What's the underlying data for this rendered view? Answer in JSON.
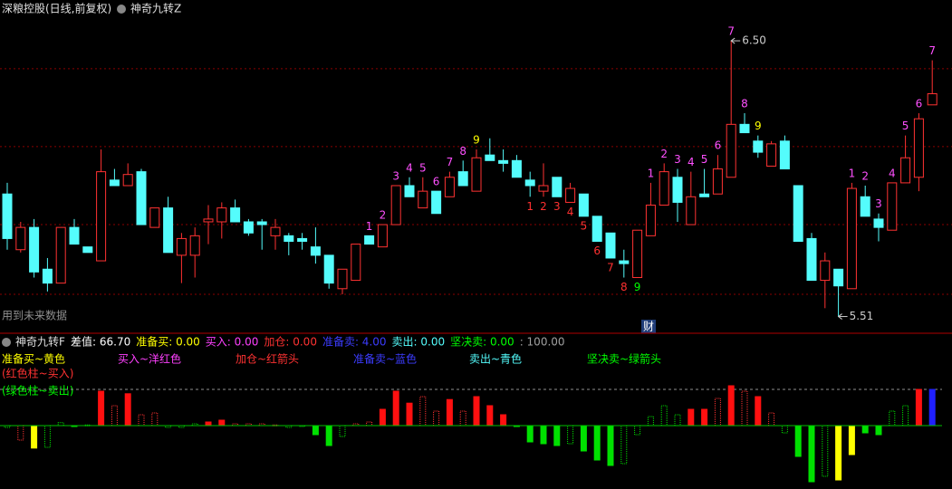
{
  "header": {
    "title": "深粮控股(日线,前复权)",
    "indicator": "神奇九转Z"
  },
  "chart_data": [
    {
      "type": "candlestick",
      "note_text": "用到未来数据",
      "tag": "财",
      "ylim": [
        5.45,
        6.64
      ],
      "gridlines": [
        6.4,
        6.12,
        5.84,
        5.59
      ],
      "up_color": "#ff3232",
      "down_color": "#54fcfc",
      "candles": [
        [
          5.95,
          5.79,
          5.99,
          5.75
        ],
        [
          5.75,
          5.83,
          5.85,
          5.74
        ],
        [
          5.83,
          5.67,
          5.86,
          5.65
        ],
        [
          5.68,
          5.63,
          5.72,
          5.6
        ],
        [
          5.63,
          5.83,
          5.83,
          5.63
        ],
        [
          5.83,
          5.77,
          5.86,
          5.77
        ],
        [
          5.76,
          5.74,
          5.76,
          5.74
        ],
        [
          5.71,
          6.03,
          6.11,
          5.71
        ],
        [
          6.0,
          5.98,
          6.04,
          5.98
        ],
        [
          5.98,
          6.02,
          6.06,
          5.98
        ],
        [
          6.03,
          5.84,
          6.04,
          5.84
        ],
        [
          5.83,
          5.9,
          5.9,
          5.83
        ],
        [
          5.9,
          5.74,
          5.94,
          5.74
        ],
        [
          5.73,
          5.79,
          5.81,
          5.63
        ],
        [
          5.73,
          5.8,
          5.83,
          5.65
        ],
        [
          5.85,
          5.86,
          5.91,
          5.77
        ],
        [
          5.85,
          5.9,
          5.92,
          5.79
        ],
        [
          5.9,
          5.85,
          5.93,
          5.85
        ],
        [
          5.85,
          5.81,
          5.86,
          5.8
        ],
        [
          5.85,
          5.84,
          5.86,
          5.75
        ],
        [
          5.8,
          5.83,
          5.86,
          5.75
        ],
        [
          5.8,
          5.78,
          5.81,
          5.73
        ],
        [
          5.79,
          5.78,
          5.81,
          5.75
        ],
        [
          5.76,
          5.73,
          5.83,
          5.7
        ],
        [
          5.73,
          5.63,
          5.73,
          5.61
        ],
        [
          5.61,
          5.68,
          5.68,
          5.59
        ],
        [
          5.64,
          5.77,
          5.77,
          5.64
        ],
        [
          5.8,
          5.77,
          5.8,
          5.77
        ],
        [
          5.76,
          5.84,
          5.84,
          5.76
        ],
        [
          5.84,
          5.98,
          5.98,
          5.84
        ],
        [
          5.98,
          5.94,
          6.01,
          5.94
        ],
        [
          5.9,
          5.96,
          6.01,
          5.9
        ],
        [
          5.96,
          5.88,
          5.96,
          5.88
        ],
        [
          5.94,
          6.01,
          6.03,
          5.94
        ],
        [
          6.03,
          5.98,
          6.07,
          5.98
        ],
        [
          5.96,
          6.08,
          6.11,
          5.96
        ],
        [
          6.09,
          6.07,
          6.15,
          6.07
        ],
        [
          6.07,
          6.06,
          6.11,
          6.03
        ],
        [
          6.07,
          6.01,
          6.09,
          6.01
        ],
        [
          6.0,
          5.98,
          6.03,
          5.94
        ],
        [
          5.96,
          5.98,
          6.06,
          5.94
        ],
        [
          6.01,
          5.94,
          6.01,
          5.94
        ],
        [
          5.92,
          5.97,
          5.99,
          5.92
        ],
        [
          5.95,
          5.87,
          5.95,
          5.87
        ],
        [
          5.87,
          5.78,
          5.87,
          5.78
        ],
        [
          5.81,
          5.72,
          5.81,
          5.72
        ],
        [
          5.71,
          5.7,
          5.75,
          5.65
        ],
        [
          5.65,
          5.82,
          5.82,
          5.65
        ],
        [
          5.8,
          5.91,
          5.99,
          5.8
        ],
        [
          5.91,
          6.03,
          6.06,
          5.91
        ],
        [
          6.01,
          5.92,
          6.04,
          5.85
        ],
        [
          5.84,
          5.94,
          6.03,
          5.84
        ],
        [
          5.95,
          5.94,
          6.04,
          5.94
        ],
        [
          5.95,
          6.04,
          6.09,
          5.95
        ],
        [
          6.01,
          6.2,
          6.5,
          6.01
        ],
        [
          6.2,
          6.17,
          6.24,
          6.17
        ],
        [
          6.14,
          6.1,
          6.16,
          6.08
        ],
        [
          6.05,
          6.13,
          6.14,
          6.05
        ],
        [
          6.14,
          6.04,
          6.16,
          6.04
        ],
        [
          5.98,
          5.78,
          5.98,
          5.78
        ],
        [
          5.79,
          5.64,
          5.81,
          5.64
        ],
        [
          5.64,
          5.71,
          5.74,
          5.54
        ],
        [
          5.68,
          5.62,
          5.68,
          5.51
        ],
        [
          5.61,
          5.97,
          5.99,
          5.61
        ],
        [
          5.94,
          5.87,
          5.98,
          5.87
        ],
        [
          5.86,
          5.83,
          5.88,
          5.78
        ],
        [
          5.82,
          5.99,
          5.99,
          5.82
        ],
        [
          5.99,
          6.08,
          6.16,
          5.99
        ],
        [
          6.01,
          6.22,
          6.24,
          5.96
        ],
        [
          6.27,
          6.31,
          6.43,
          6.27
        ]
      ],
      "sell_count": [
        null,
        null,
        null,
        null,
        null,
        null,
        null,
        null,
        null,
        null,
        null,
        null,
        null,
        null,
        null,
        null,
        null,
        null,
        null,
        null,
        null,
        null,
        null,
        null,
        null,
        null,
        null,
        1,
        2,
        3,
        4,
        5,
        6,
        7,
        8,
        9,
        null,
        null,
        null,
        null,
        null,
        null,
        null,
        null,
        null,
        null,
        null,
        null,
        1,
        2,
        3,
        4,
        5,
        6,
        7,
        8,
        9,
        null,
        null,
        null,
        null,
        null,
        null,
        1,
        2,
        3,
        4,
        5,
        6,
        7
      ],
      "buy_count": [
        null,
        null,
        null,
        null,
        null,
        null,
        null,
        null,
        null,
        null,
        null,
        null,
        null,
        null,
        null,
        null,
        null,
        null,
        null,
        null,
        null,
        null,
        null,
        null,
        null,
        null,
        null,
        null,
        null,
        null,
        null,
        null,
        null,
        null,
        null,
        null,
        null,
        null,
        null,
        1,
        2,
        3,
        4,
        5,
        6,
        7,
        8,
        9,
        null,
        null,
        null,
        null,
        null,
        null,
        null,
        null,
        null,
        null,
        null,
        null,
        null,
        null,
        null,
        null,
        null,
        null,
        null,
        null,
        null,
        null
      ],
      "annotations": [
        {
          "text": "6.50",
          "at": "max"
        },
        {
          "text": "5.51",
          "at": "min"
        }
      ]
    },
    {
      "type": "bar",
      "name": "神奇九转F",
      "readouts": [
        {
          "text": "差值: 66.70",
          "color": "#ffffff"
        },
        {
          "text": "准备买: 0.00",
          "color": "#ffff00"
        },
        {
          "text": "买入: 0.00",
          "color": "#ff40ff"
        },
        {
          "text": "加仓: 0.00",
          "color": "#ff3232"
        },
        {
          "text": "准备卖: 4.00",
          "color": "#3c3cff"
        },
        {
          "text": "卖出: 0.00",
          "color": "#54fcfc"
        },
        {
          "text": "坚决卖: 0.00",
          "color": "#00ff00"
        },
        {
          "text": ": 100.00",
          "color": "#a0a0a0"
        }
      ],
      "legend": [
        {
          "text": "准备买~黄色",
          "color": "#ffff00"
        },
        {
          "text": "买入~洋红色",
          "color": "#ff40ff"
        },
        {
          "text": "加仓~红箭头",
          "color": "#ff3232"
        },
        {
          "text": "准备卖~蓝色",
          "color": "#3c3cff"
        },
        {
          "text": "卖出~青色",
          "color": "#54fcfc"
        },
        {
          "text": "坚决卖~绿箭头",
          "color": "#00ff00"
        }
      ],
      "notes": [
        {
          "text": "(红色柱~买入)",
          "color": "#ff3232"
        },
        {
          "text": "(绿色柱~卖出)",
          "color": "#00ff00"
        }
      ],
      "y2lim": [
        -175,
        205
      ],
      "dashed_level": 100,
      "values": [
        -5,
        -40,
        -62,
        -60,
        8,
        0,
        2,
        95,
        55,
        88,
        30,
        35,
        -5,
        -5,
        5,
        10,
        15,
        5,
        5,
        5,
        2,
        -5,
        -2,
        -25,
        -55,
        -30,
        5,
        10,
        45,
        95,
        62,
        80,
        40,
        72,
        40,
        80,
        55,
        30,
        0,
        -45,
        -50,
        -55,
        -50,
        -70,
        -95,
        -110,
        -105,
        -25,
        25,
        55,
        30,
        45,
        45,
        75,
        110,
        95,
        80,
        35,
        -20,
        -85,
        -155,
        -140,
        -150,
        -80,
        -20,
        -25,
        40,
        55,
        100,
        100
      ],
      "styles": [
        "hg",
        "hr",
        "y",
        "hg",
        "hg",
        "g",
        "hg",
        "r",
        "hr",
        "r",
        "hr",
        "hr",
        "hg",
        "hg",
        "hg",
        "r",
        "r",
        "hr",
        "hr",
        "hr",
        "hr",
        "hg",
        "hg",
        "g",
        "g",
        "hg",
        "hr",
        "hr",
        "r",
        "r",
        "r",
        "hr",
        "hr",
        "r",
        "hr",
        "r",
        "r",
        "r",
        "g",
        "g",
        "g",
        "g",
        "hg",
        "g",
        "g",
        "g",
        "hg",
        "hg",
        "hg",
        "hg",
        "hg",
        "r",
        "r",
        "hr",
        "r",
        "hr",
        "r",
        "hr",
        "hg",
        "g",
        "g",
        "hg",
        "y",
        "y",
        "g",
        "g",
        "hg",
        "hg",
        "r",
        "b"
      ]
    }
  ]
}
